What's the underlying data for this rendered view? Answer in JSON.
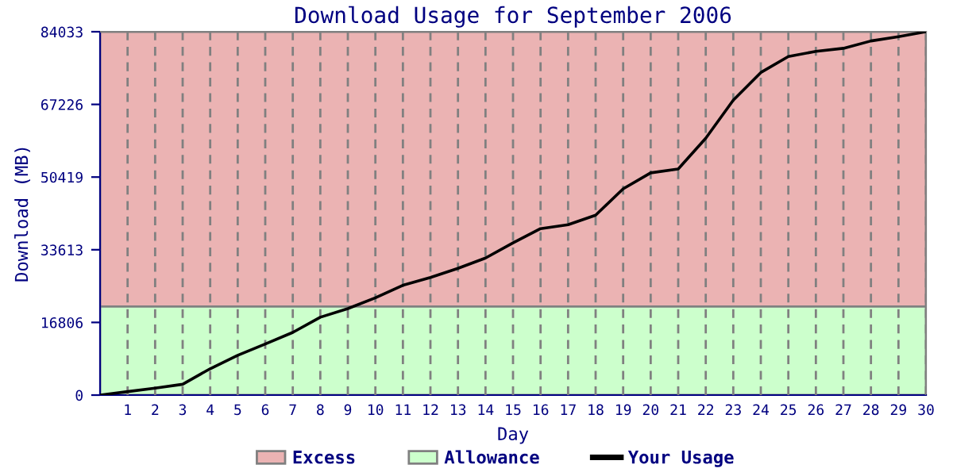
{
  "chart_data": {
    "type": "line",
    "title": "Download Usage for September 2006",
    "xlabel": "Day",
    "ylabel": "Download (MB)",
    "x": [
      0,
      1,
      2,
      3,
      4,
      5,
      6,
      7,
      8,
      9,
      10,
      11,
      12,
      13,
      14,
      15,
      16,
      17,
      18,
      19,
      20,
      21,
      22,
      23,
      24,
      25,
      26,
      27,
      28,
      29,
      30
    ],
    "series": [
      {
        "name": "Your Usage",
        "color": "#000000",
        "values": [
          0,
          800,
          1600,
          2500,
          6100,
          9200,
          11800,
          14500,
          18000,
          20000,
          22500,
          25400,
          27200,
          29300,
          31700,
          35200,
          38500,
          39400,
          41600,
          47700,
          51400,
          52300,
          59400,
          68200,
          74600,
          78300,
          79500,
          80200,
          81900,
          82900,
          84033
        ]
      }
    ],
    "bands": [
      {
        "axis": "y",
        "from": 20480,
        "to": 84033,
        "label": "Excess",
        "color": "#ebb3b3"
      },
      {
        "axis": "y",
        "from": 0,
        "to": 20480,
        "label": "Allowance",
        "color": "#ccffcc"
      }
    ],
    "xlim": [
      0,
      30
    ],
    "xticks": [
      1,
      2,
      3,
      4,
      5,
      6,
      7,
      8,
      9,
      10,
      11,
      12,
      13,
      14,
      15,
      16,
      17,
      18,
      19,
      20,
      21,
      22,
      23,
      24,
      25,
      26,
      27,
      28,
      29,
      30
    ],
    "ylim": [
      0,
      84033
    ],
    "yticks": [
      0,
      16806,
      33613,
      50419,
      67226,
      84033
    ],
    "grid": "x",
    "legend": "bottom",
    "marker": "none",
    "line_style": "solid"
  }
}
